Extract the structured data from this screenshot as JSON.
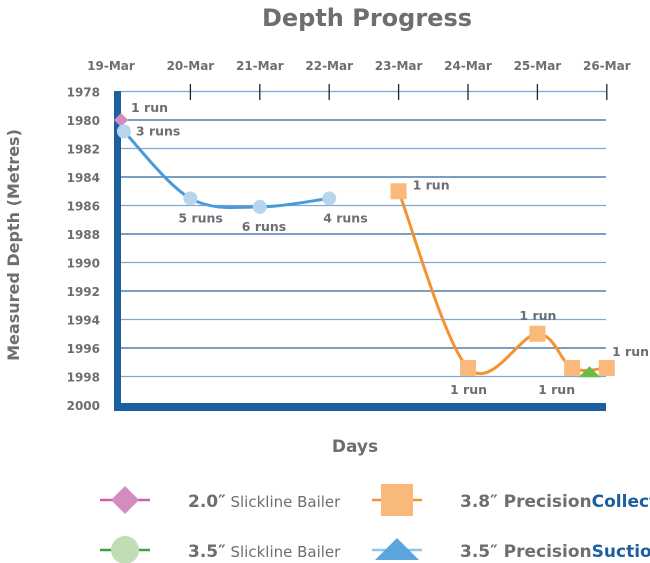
{
  "chart_data": {
    "type": "line",
    "title": "Depth Progress",
    "xlabel": "Days",
    "ylabel": "Measured Depth (Metres)",
    "x_ticks": [
      "19-Mar",
      "20-Mar",
      "21-Mar",
      "22-Mar",
      "23-Mar",
      "24-Mar",
      "25-Mar",
      "26-Mar"
    ],
    "y_ticks": [
      1978,
      1980,
      1982,
      1984,
      1986,
      1988,
      1990,
      1992,
      1994,
      1996,
      1998,
      2000
    ],
    "ylim": [
      1978,
      2000
    ],
    "y_reversed": true,
    "grid": true,
    "legend_position": "bottom",
    "series": [
      {
        "name_bold": "2.0″",
        "name_rest": " Slickline Bailer",
        "name_accent": "",
        "marker": "diamond",
        "color": "#d48bbd",
        "line_color": "#d05ea8",
        "legend_marker_color": "#d48bbd",
        "points": [
          {
            "x": "19-Mar 00:00",
            "y": 1980.0,
            "label": "1 run"
          }
        ]
      },
      {
        "name_bold": "3.5″",
        "name_rest": " Slickline Bailer",
        "name_accent": "",
        "marker": "circle",
        "color": "#b9d5ee",
        "line_color": "#4a9ad8",
        "legend_marker_color": "#c2dcb6",
        "legend_line_color": "#3aa34a",
        "points": [
          {
            "x": "19-Mar 01:00",
            "y": 1980.8,
            "label": "3 runs"
          },
          {
            "x": "20-Mar 00:00",
            "y": 1985.5,
            "label": "5 runs"
          },
          {
            "x": "21-Mar 00:00",
            "y": 1986.1,
            "label": "6 runs"
          },
          {
            "x": "22-Mar 00:00",
            "y": 1985.5,
            "label": "4 runs"
          }
        ]
      },
      {
        "name_bold": "3.8″ Precision",
        "name_rest": "",
        "name_accent": "Collector",
        "marker": "square",
        "color": "#f9b97a",
        "line_color": "#f39332",
        "legend_marker_color": "#f9b97a",
        "points": [
          {
            "x": "23-Mar 00:00",
            "y": 1985.0,
            "label": "1 run"
          },
          {
            "x": "24-Mar 00:00",
            "y": 1997.4,
            "label": "1 run"
          },
          {
            "x": "25-Mar 00:00",
            "y": 1995.0,
            "label": "1 run"
          },
          {
            "x": "25-Mar 12:00",
            "y": 1997.4,
            "label": "1 run"
          },
          {
            "x": "26-Mar 00:00",
            "y": 1997.4,
            "label": "1 run"
          }
        ]
      },
      {
        "name_bold": "3.5″ Precision",
        "name_rest": "",
        "name_accent": "Suction",
        "marker": "triangle",
        "color": "#6dbb45",
        "line_color": "#6dbb45",
        "legend_marker_color": "#5aa6dc",
        "legend_line_color": "#8cc8ee",
        "points": [
          {
            "x": "25-Mar 18:00",
            "y": 1997.7,
            "label": ""
          }
        ]
      }
    ]
  },
  "colors": {
    "axis": "#1c5f9e",
    "grid_dark": "#2a64a0",
    "grid_light": "#7fa9d4",
    "text": "#6d6e71",
    "accent": "#1c5f9e"
  }
}
